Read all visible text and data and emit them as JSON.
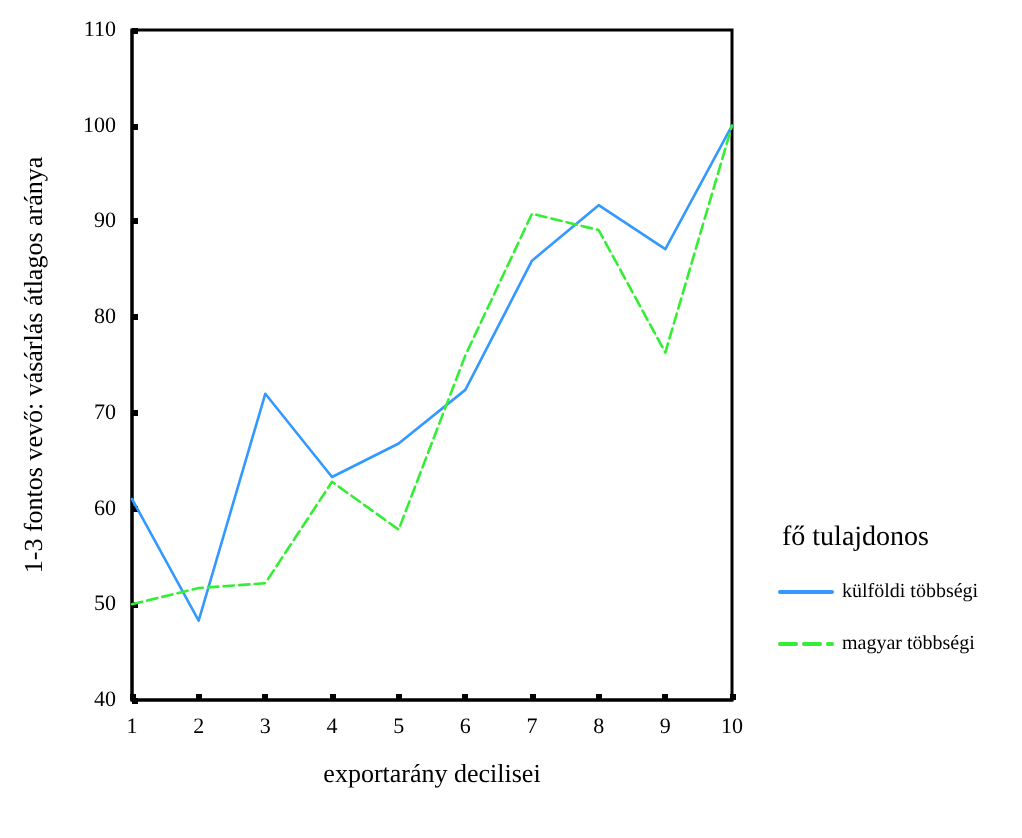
{
  "chart_data": {
    "type": "line",
    "xlabel": "exportarány decilisei",
    "ylabel": "1-3 fontos vevő: vásárlás átlagos aránya",
    "legend_title": "fő tulajdonos",
    "x": [
      1,
      2,
      3,
      4,
      5,
      6,
      7,
      8,
      9,
      10
    ],
    "series": [
      {
        "name": "külföldi többségi",
        "color": "#3399ff",
        "line_style": "solid",
        "values": [
          61,
          48.3,
          72,
          63.3,
          66.8,
          72.4,
          85.9,
          91.7,
          87.1,
          100
        ]
      },
      {
        "name": "magyar többségi",
        "color": "#33ee33",
        "line_style": "dashed",
        "values": [
          50,
          51.7,
          52.2,
          62.8,
          57.8,
          76,
          90.8,
          89.1,
          76.3,
          100
        ]
      }
    ],
    "xlim": [
      1,
      10
    ],
    "xticks": [
      1,
      2,
      3,
      4,
      5,
      6,
      7,
      8,
      9,
      10
    ],
    "ylim": [
      40,
      110
    ],
    "yticks": [
      40,
      50,
      60,
      70,
      80,
      90,
      100,
      110
    ],
    "grid": false,
    "legend": "right",
    "marker": "none"
  }
}
